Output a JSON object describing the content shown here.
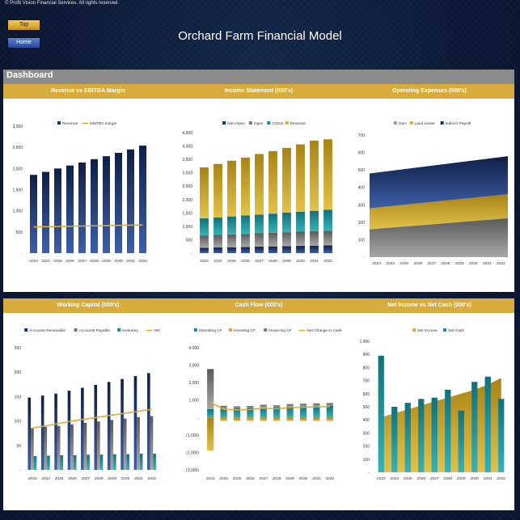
{
  "copyright": "© Profit Vision Financial Services. All rights reserved.",
  "nav": {
    "top_label": "Top",
    "home_label": "Home"
  },
  "header": {
    "title": "Orchard Farm Financial Model"
  },
  "dashboard": {
    "label": "Dashboard"
  },
  "colors": {
    "gold": "#d8ac3c",
    "navy": "#1b3260",
    "teal": "#1a8c94",
    "gray": "#8c8c8c"
  },
  "chart_data": [
    {
      "id": "rev",
      "type": "bar",
      "title": "Revenue vs EBITDA Margin",
      "categories": [
        "2023",
        "2024",
        "2025",
        "2026",
        "2027",
        "2028",
        "2029",
        "2030",
        "2031",
        "2032"
      ],
      "series": [
        {
          "name": "Revenue",
          "type": "bar",
          "values": [
            1850,
            1920,
            2000,
            2070,
            2140,
            2220,
            2290,
            2370,
            2450,
            2540
          ]
        },
        {
          "name": "EBITDA margin",
          "type": "line",
          "values": [
            620,
            625,
            630,
            635,
            640,
            645,
            650,
            655,
            660,
            665
          ]
        }
      ],
      "ylim": [
        0,
        3000
      ],
      "yticks": [
        "-",
        "500",
        "1,000",
        "1,500",
        "2,000",
        "2,500",
        "3,000"
      ],
      "legend": "top",
      "grid": false
    },
    {
      "id": "inc",
      "type": "bar",
      "stacked": true,
      "title": "Income Statement (000's)",
      "categories": [
        "2023",
        "2024",
        "2025",
        "2026",
        "2027",
        "2028",
        "2029",
        "2030",
        "2031",
        "2032"
      ],
      "series": [
        {
          "name": "Non Opex",
          "values": [
            200,
            210,
            220,
            230,
            240,
            250,
            260,
            270,
            280,
            290
          ]
        },
        {
          "name": "Opex",
          "values": [
            460,
            470,
            480,
            490,
            500,
            510,
            520,
            530,
            540,
            550
          ]
        },
        {
          "name": "COGS",
          "values": [
            640,
            655,
            670,
            685,
            700,
            715,
            730,
            745,
            760,
            775
          ]
        },
        {
          "name": "Revenue",
          "values": [
            1900,
            1995,
            2080,
            2165,
            2260,
            2335,
            2420,
            2515,
            2620,
            2635
          ]
        }
      ],
      "ylim": [
        0,
        4500
      ],
      "yticks": [
        "-",
        "500",
        "1,000",
        "1,500",
        "2,000",
        "2,500",
        "3,000",
        "3,500",
        "4,000",
        "4,500"
      ],
      "legend": "top",
      "grid": false
    },
    {
      "id": "opx",
      "type": "area",
      "stacked": true,
      "title": "Operating Expenses (000's)",
      "categories": [
        "2023",
        "2024",
        "2025",
        "2026",
        "2027",
        "2028",
        "2029",
        "2030",
        "2031",
        "2032"
      ],
      "series": [
        {
          "name": "G&A",
          "values": [
            160,
            167,
            174,
            181,
            188,
            195,
            202,
            209,
            216,
            223
          ]
        },
        {
          "name": "Land Lease",
          "values": [
            120,
            122,
            124,
            126,
            128,
            130,
            132,
            134,
            136,
            138
          ]
        },
        {
          "name": "Indirect Payroll",
          "values": [
            200,
            202,
            204,
            206,
            208,
            210,
            212,
            214,
            216,
            218
          ]
        }
      ],
      "ylim": [
        0,
        700
      ],
      "yticks": [
        "-",
        "100",
        "200",
        "300",
        "400",
        "500",
        "600",
        "700"
      ],
      "legend": "top",
      "grid": false
    },
    {
      "id": "wc",
      "type": "bar",
      "title": "Working Capital (000's)",
      "categories": [
        "2023",
        "2024",
        "2025",
        "2026",
        "2027",
        "2028",
        "2029",
        "2030",
        "2031",
        "2032"
      ],
      "series": [
        {
          "name": "Accounts Receivable",
          "type": "bar",
          "values": [
            148,
            152,
            156,
            162,
            168,
            174,
            180,
            186,
            192,
            198
          ]
        },
        {
          "name": "Accounts Payable",
          "type": "bar",
          "values": [
            85,
            88,
            90,
            93,
            96,
            99,
            102,
            105,
            108,
            110
          ]
        },
        {
          "name": "Inventory",
          "type": "bar",
          "values": [
            28,
            29,
            30,
            30,
            31,
            31,
            32,
            32,
            33,
            33
          ]
        },
        {
          "name": "WC",
          "type": "line",
          "values": [
            86,
            90,
            95,
            100,
            104,
            108,
            112,
            116,
            120,
            124
          ]
        }
      ],
      "ylim": [
        0,
        250
      ],
      "yticks": [
        "-",
        "50",
        "100",
        "150",
        "200",
        "250"
      ],
      "legend": "top",
      "grid": false
    },
    {
      "id": "cf",
      "type": "bar",
      "stacked": true,
      "title": "Cash Flow (000's)",
      "categories": [
        "2023",
        "2024",
        "2025",
        "2026",
        "2027",
        "2028",
        "2029",
        "2030",
        "2031",
        "2032"
      ],
      "series": [
        {
          "name": "Operating CF",
          "values": [
            480,
            520,
            540,
            560,
            580,
            600,
            620,
            640,
            660,
            680
          ]
        },
        {
          "name": "Investing CF",
          "values": [
            -1900,
            -200,
            -200,
            -200,
            -200,
            -200,
            -200,
            -200,
            -200,
            -200
          ]
        },
        {
          "name": "Financing CF",
          "values": [
            2300,
            150,
            100,
            100,
            150,
            100,
            150,
            150,
            150,
            150
          ]
        },
        {
          "name": "Net Change in Cash",
          "type": "line",
          "values": [
            880,
            470,
            440,
            460,
            530,
            500,
            570,
            590,
            610,
            630
          ]
        }
      ],
      "ylim": [
        -3000,
        4000
      ],
      "yticks": [
        "(3,000)",
        "(2,000)",
        "(1,000)",
        "-",
        "1,000",
        "2,000",
        "3,000",
        "4,000"
      ],
      "legend": "top",
      "grid": false
    },
    {
      "id": "ni",
      "type": "bar",
      "title": "Net Income vs Net Cash (000's)",
      "categories": [
        "2023",
        "2024",
        "2025",
        "2026",
        "2027",
        "2028",
        "2029",
        "2030",
        "2031",
        "2032"
      ],
      "series": [
        {
          "name": "Net Income",
          "type": "area",
          "values": [
            420,
            450,
            480,
            510,
            540,
            570,
            600,
            630,
            670,
            720
          ]
        },
        {
          "name": "Net Cash",
          "type": "bar",
          "values": [
            890,
            500,
            530,
            560,
            570,
            630,
            470,
            690,
            730,
            560
          ]
        }
      ],
      "ylim": [
        0,
        1000
      ],
      "yticks": [
        "-",
        "100",
        "200",
        "300",
        "400",
        "500",
        "600",
        "700",
        "800",
        "900",
        "1,000"
      ],
      "legend": "top",
      "grid": false
    }
  ]
}
